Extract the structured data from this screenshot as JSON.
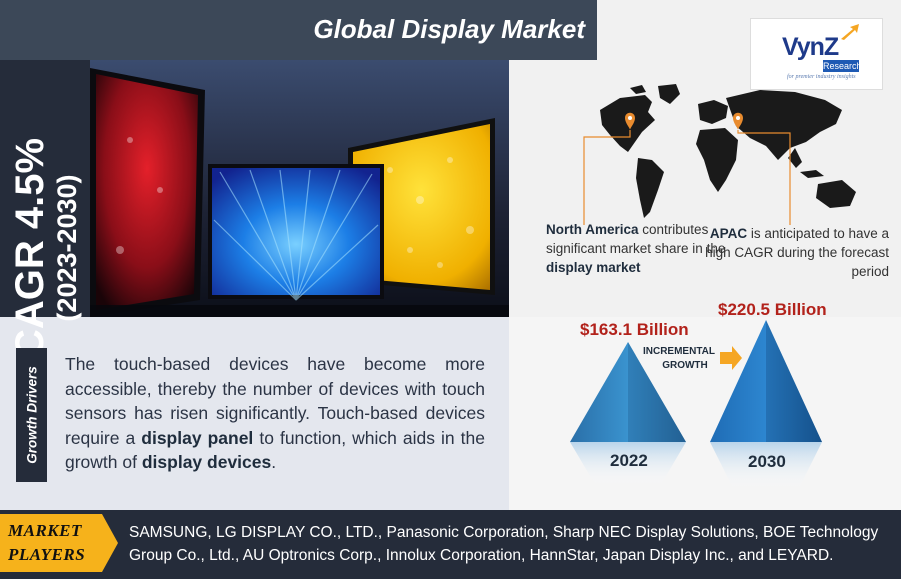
{
  "title": "Global Display Market",
  "cagr": {
    "value_text": "CAGR 4.5%",
    "period_text": "(2023-2030)"
  },
  "logo": {
    "word": "VynZ",
    "sub": "Research",
    "tagline": "for premier industry insights"
  },
  "regions": {
    "north_america": {
      "bold_name": "North America",
      "text_1": " contributes significant market share in the ",
      "bold_market": "display market"
    },
    "apac": {
      "bold_name": "APAC",
      "text_1": " is anticipated to have a high CAGR during the forecast period"
    }
  },
  "market_size": {
    "value_2022": "$163.1 Billion",
    "value_2030": "$220.5 Billion",
    "year_2022": "2022",
    "year_2030": "2030",
    "incremental_label_1": "INCREMENTAL",
    "incremental_label_2": "GROWTH"
  },
  "growth_drivers": {
    "tab_label": "Growth Drivers",
    "text_1": "The touch-based devices have become more accessible, thereby the number of devices with touch sensors has risen significantly. Touch-based devices require a ",
    "bold_1": "display panel",
    "text_2": " to function, which aids in the growth of ",
    "bold_2": "display devices",
    "text_3": "."
  },
  "market_players": {
    "label_1": "MARKET",
    "label_2": "PLAYERS",
    "list": "SAMSUNG, LG DISPLAY CO., LTD., Panasonic Corporation, Sharp NEC Display Solutions, BOE Technology Group Co., Ltd., AU Optronics Corp., Innolux Corporation, HannStar, Japan Display Inc., and LEYARD."
  },
  "colors": {
    "dark_navy": "#252c3a",
    "title_bar": "#3c4858",
    "value_red": "#b2221b",
    "cone_blue": "#2f84c6",
    "arrow_orange": "#f5a623",
    "pin_orange": "#e88b2e",
    "tag_yellow": "#f6b21b"
  },
  "icons": {
    "map_pin": "location-pin-icon",
    "arrow": "arrow-right-icon"
  }
}
